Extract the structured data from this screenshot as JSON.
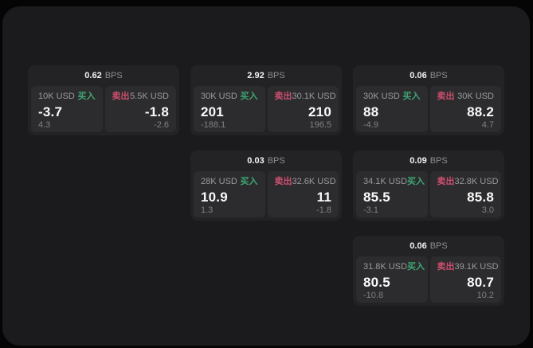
{
  "labels": {
    "bps_unit": "BPS",
    "buy": "买入",
    "sell": "卖出"
  },
  "colors": {
    "background": "#050505",
    "surface": "#1b1b1d",
    "card": "#232325",
    "panel": "#2c2c2e",
    "buy_accent": "#3fa573",
    "sell_accent": "#cc4f6e",
    "text_primary": "#fafafa",
    "text_secondary": "#9a9a9f"
  },
  "cards": [
    {
      "bps": "0.62",
      "row": 1,
      "col": 1,
      "buy": {
        "amount": "10K USD",
        "value": "-3.7",
        "delta": "4.3"
      },
      "sell": {
        "amount": "5.5K USD",
        "value": "-1.8",
        "delta": "-2.6"
      }
    },
    {
      "bps": "2.92",
      "row": 1,
      "col": 2,
      "buy": {
        "amount": "30K USD",
        "value": "201",
        "delta": "-188.1"
      },
      "sell": {
        "amount": "30.1K USD",
        "value": "210",
        "delta": "196.5"
      }
    },
    {
      "bps": "0.06",
      "row": 1,
      "col": 3,
      "buy": {
        "amount": "30K USD",
        "value": "88",
        "delta": "-4.9"
      },
      "sell": {
        "amount": "30K USD",
        "value": "88.2",
        "delta": "4.7"
      }
    },
    {
      "bps": "0.03",
      "row": 2,
      "col": 2,
      "buy": {
        "amount": "28K USD",
        "value": "10.9",
        "delta": "1.3"
      },
      "sell": {
        "amount": "32.6K USD",
        "value": "11",
        "delta": "-1.8"
      }
    },
    {
      "bps": "0.09",
      "row": 2,
      "col": 3,
      "buy": {
        "amount": "34.1K USD",
        "value": "85.5",
        "delta": "-3.1"
      },
      "sell": {
        "amount": "32.8K USD",
        "value": "85.8",
        "delta": "3.0"
      }
    },
    {
      "bps": "0.06",
      "row": 3,
      "col": 3,
      "buy": {
        "amount": "31.8K USD",
        "value": "80.5",
        "delta": "-10.8"
      },
      "sell": {
        "amount": "39.1K USD",
        "value": "80.7",
        "delta": "10.2"
      }
    }
  ]
}
